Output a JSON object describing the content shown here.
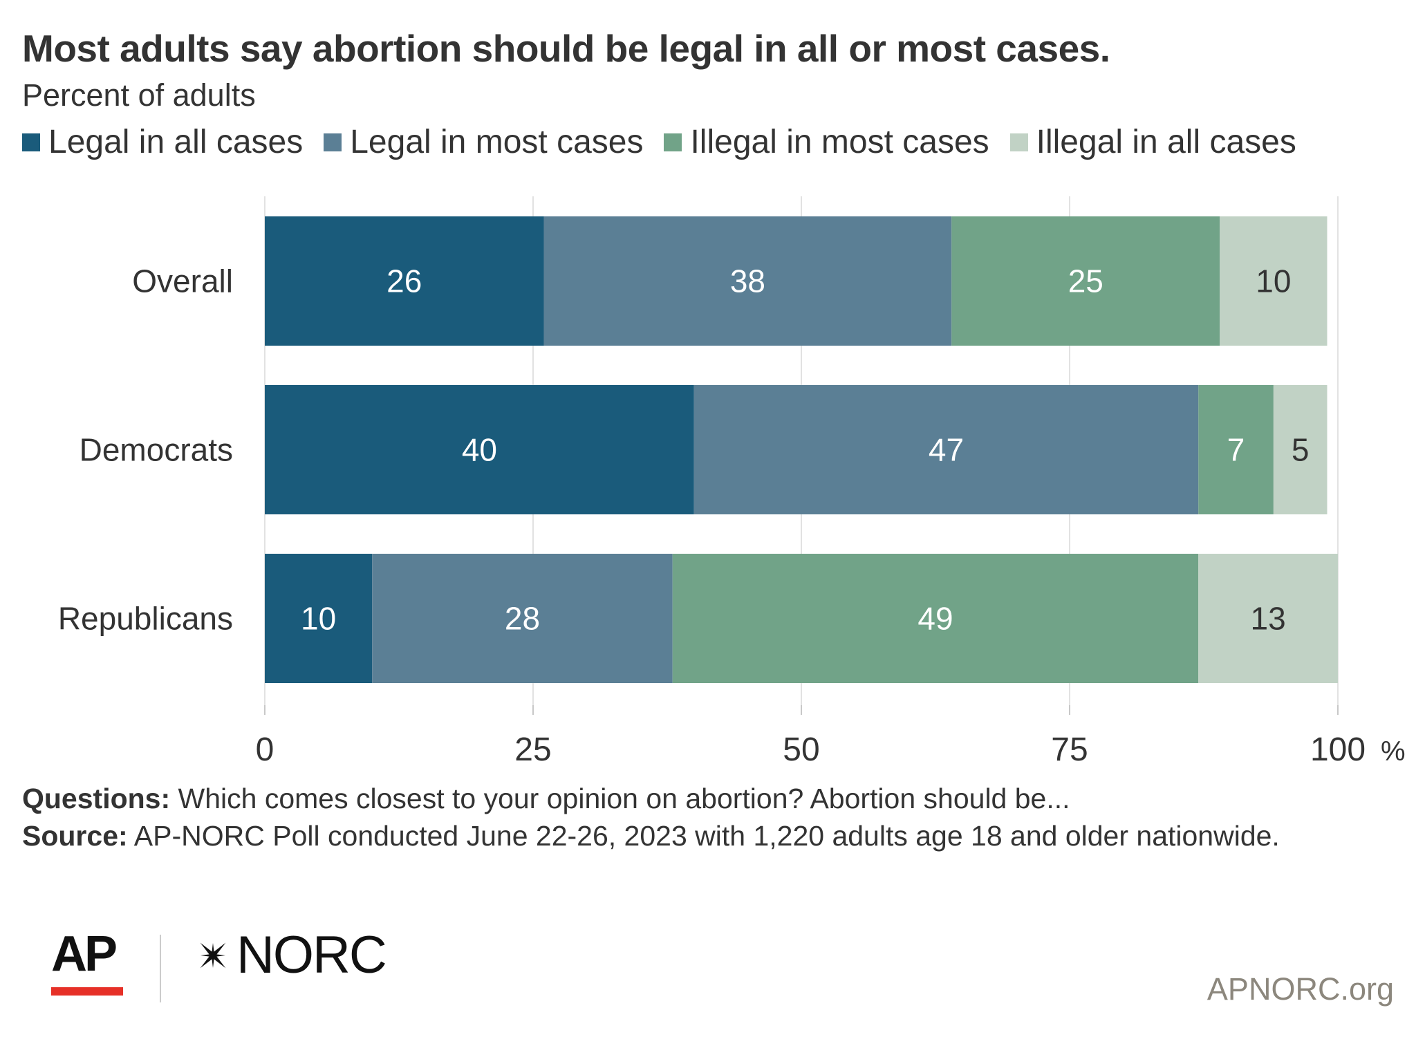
{
  "chart_data": {
    "type": "bar",
    "orientation": "horizontal",
    "stacked": true,
    "title": "Most adults say abortion should be legal in all or most cases.",
    "subtitle": "Percent of adults",
    "categories": [
      "Overall",
      "Democrats",
      "Republicans"
    ],
    "series": [
      {
        "name": "Legal in all cases",
        "color": "#1a5b7b",
        "values": [
          26,
          40,
          10
        ]
      },
      {
        "name": "Legal in most cases",
        "color": "#5b7f95",
        "values": [
          38,
          47,
          28
        ]
      },
      {
        "name": "Illegal in most cases",
        "color": "#71a388",
        "values": [
          25,
          7,
          49
        ]
      },
      {
        "name": "Illegal in all cases",
        "color": "#c1d2c5",
        "values": [
          10,
          5,
          13
        ]
      }
    ],
    "xlim": [
      0,
      100
    ],
    "xticks": [
      0,
      25,
      50,
      75,
      100
    ],
    "xtick_labels": [
      "0",
      "25",
      "50",
      "75",
      "100"
    ],
    "x_unit": "%",
    "grid": true,
    "legend_position": "top"
  },
  "notes": {
    "questions_label": "Questions:",
    "questions_text": "Which comes closest to your opinion on abortion? Abortion should be...",
    "source_label": "Source:",
    "source_text": "AP-NORC Poll conducted June 22-26, 2023 with 1,220 adults age 18 and older nationwide."
  },
  "branding": {
    "ap": "AP",
    "norc": "NORC",
    "site": "APNORC.org",
    "ap_red": "#e63027"
  }
}
